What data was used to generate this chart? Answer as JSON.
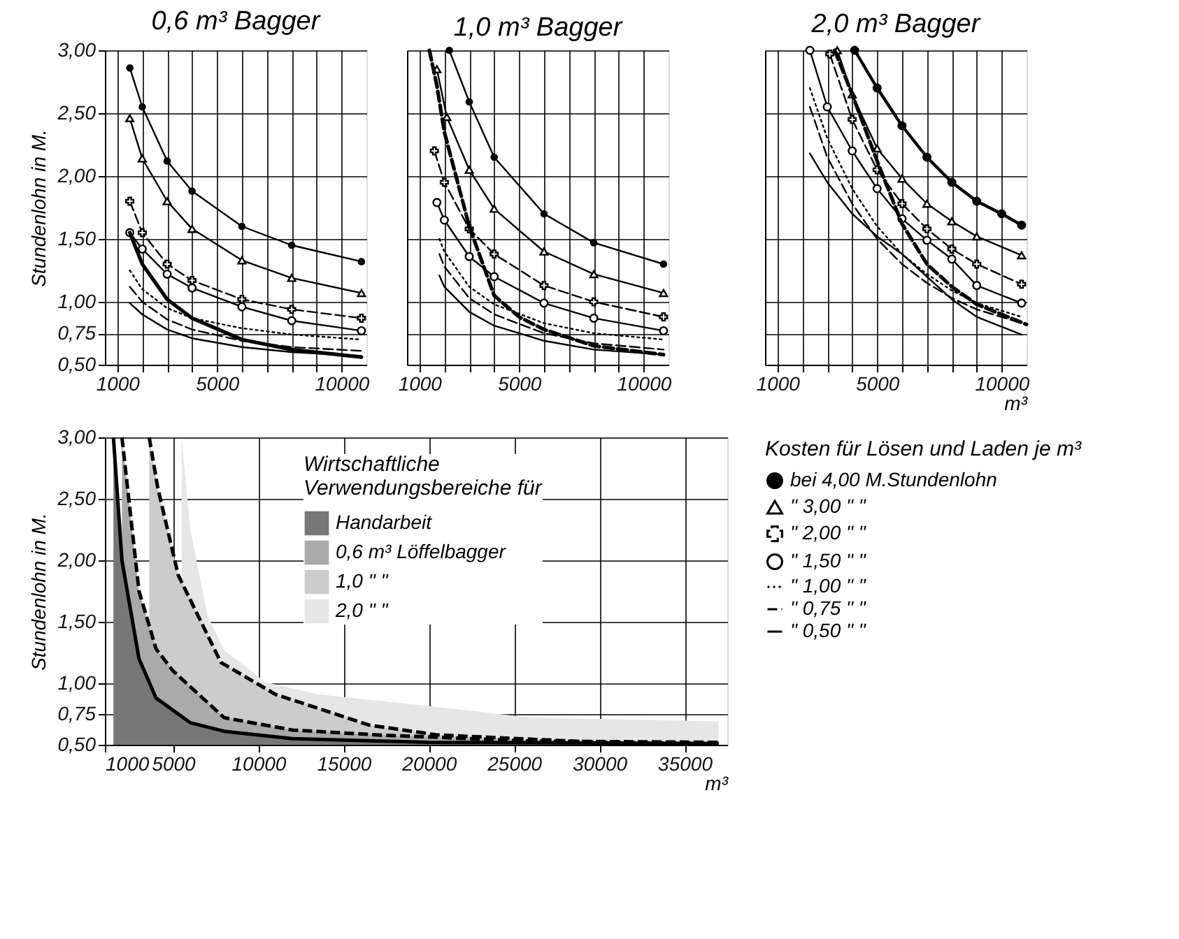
{
  "chart_data": [
    {
      "type": "line",
      "title": "0,6 m³ Bagger",
      "ylabel": "Stundenlohn in M.",
      "xlim": [
        500,
        11000
      ],
      "ylim": [
        0.5,
        3.0
      ],
      "xticks": [
        1000,
        {
          "value": 2000,
          "label": null
        },
        {
          "value": 3000,
          "label": null
        },
        {
          "value": 4000,
          "label": null
        },
        5000,
        {
          "value": 6000,
          "label": null
        },
        {
          "value": 7000,
          "label": null
        },
        {
          "value": 8000,
          "label": null
        },
        {
          "value": 9000,
          "label": null
        },
        10000
      ],
      "yticks": [
        {
          "value": 0.5,
          "label": "0,50"
        },
        {
          "value": 0.75,
          "label": "0,75"
        },
        {
          "value": 1.0,
          "label": "1,00"
        },
        {
          "value": 1.5,
          "label": "1,50"
        },
        {
          "value": 2.0,
          "label": "2,00"
        },
        {
          "value": 2.5,
          "label": "2,50"
        },
        {
          "value": 3.0,
          "label": "3,00"
        }
      ],
      "grid": true,
      "legend": false,
      "series": [
        {
          "color": "#000000",
          "marker": "circle",
          "line_style": "solid",
          "x": [
            1500,
            2000,
            3000,
            4000,
            6000,
            8000,
            10800
          ],
          "values": [
            2.86,
            2.55,
            2.12,
            1.88,
            1.6,
            1.45,
            1.32
          ]
        },
        {
          "color": "#000000",
          "marker": "triangle",
          "line_style": "solid",
          "x": [
            1500,
            2000,
            3000,
            4000,
            6000,
            8000,
            10800
          ],
          "values": [
            2.46,
            2.14,
            1.8,
            1.58,
            1.33,
            1.19,
            1.07
          ]
        },
        {
          "color": "#000000",
          "marker": "cross",
          "line_style": "dashed",
          "x": [
            1500,
            2000,
            3000,
            4000,
            6000,
            8000,
            10800
          ],
          "values": [
            1.8,
            1.55,
            1.3,
            1.17,
            1.02,
            0.94,
            0.87
          ]
        },
        {
          "color": "#000000",
          "marker": "circle",
          "line_style": "solid",
          "x": [
            1500,
            2000,
            3000,
            4000,
            6000,
            8000,
            10800
          ],
          "values": [
            1.55,
            1.42,
            1.22,
            1.11,
            0.96,
            0.85,
            0.77
          ]
        },
        {
          "color": "#000000",
          "line_style": "dotted",
          "x": [
            1500,
            2000,
            3000,
            4000,
            6000,
            8000,
            10800
          ],
          "values": [
            1.25,
            1.1,
            0.95,
            0.87,
            0.79,
            0.74,
            0.7
          ]
        },
        {
          "color": "#000000",
          "line_style": "dashed",
          "x": [
            1500,
            2000,
            3000,
            4000,
            6000,
            8000,
            10800
          ],
          "values": [
            1.12,
            1.0,
            0.86,
            0.78,
            0.69,
            0.64,
            0.61
          ]
        },
        {
          "color": "#000000",
          "line_style": "solid",
          "x": [
            1500,
            2000,
            3000,
            4000,
            6000,
            8000,
            10800
          ],
          "values": [
            0.99,
            0.9,
            0.78,
            0.71,
            0.64,
            0.6,
            0.57
          ]
        },
        {
          "color": "#000000",
          "line_style": "solid",
          "x": [
            1500,
            2000,
            3000,
            4000,
            6000,
            8000,
            10800
          ],
          "values": [
            1.55,
            1.3,
            1.02,
            0.87,
            0.7,
            0.62,
            0.56
          ]
        }
      ]
    },
    {
      "type": "line",
      "title": "1,0 m³ Bagger",
      "xlim": [
        500,
        11000
      ],
      "ylim": [
        0.5,
        3.0
      ],
      "tick_labels": "x",
      "xticks": [
        1000,
        {
          "value": 2000,
          "label": null
        },
        {
          "value": 3000,
          "label": null
        },
        {
          "value": 4000,
          "label": null
        },
        5000,
        {
          "value": 6000,
          "label": null
        },
        {
          "value": 7000,
          "label": null
        },
        {
          "value": 8000,
          "label": null
        },
        {
          "value": 9000,
          "label": null
        },
        10000
      ],
      "yticks": [
        {
          "value": 0.5,
          "label": null
        },
        {
          "value": 0.75,
          "label": null
        },
        {
          "value": 1.0,
          "label": null
        },
        {
          "value": 1.5,
          "label": null
        },
        {
          "value": 2.0,
          "label": null
        },
        {
          "value": 2.5,
          "label": null
        },
        {
          "value": 3.0,
          "label": null
        }
      ],
      "grid": true,
      "legend": false,
      "series": [
        {
          "color": "#000000",
          "marker": "circle",
          "line_style": "solid",
          "x": [
            2200,
            3000,
            4000,
            6000,
            8000,
            10800
          ],
          "values": [
            3.0,
            2.59,
            2.15,
            1.7,
            1.47,
            1.3
          ]
        },
        {
          "color": "#000000",
          "marker": "triangle",
          "line_style": "solid",
          "x": [
            1700,
            2100,
            3000,
            4000,
            6000,
            8000,
            10800
          ],
          "values": [
            2.85,
            2.47,
            2.05,
            1.74,
            1.4,
            1.22,
            1.07
          ]
        },
        {
          "color": "#000000",
          "marker": "cross",
          "line_style": "dashed",
          "x": [
            1600,
            2000,
            3000,
            4000,
            6000,
            8000,
            10800
          ],
          "values": [
            2.2,
            1.95,
            1.58,
            1.38,
            1.13,
            1.0,
            0.88
          ]
        },
        {
          "color": "#000000",
          "marker": "circle",
          "line_style": "solid",
          "x": [
            1700,
            2000,
            3000,
            4000,
            6000,
            8000,
            10800
          ],
          "values": [
            1.79,
            1.65,
            1.36,
            1.2,
            0.99,
            0.87,
            0.77
          ]
        },
        {
          "color": "#000000",
          "line_style": "dotted",
          "x": [
            1800,
            2000,
            3000,
            4000,
            6000,
            8000,
            10800
          ],
          "values": [
            1.5,
            1.4,
            1.12,
            0.98,
            0.83,
            0.75,
            0.7
          ]
        },
        {
          "color": "#000000",
          "line_style": "dashed",
          "x": [
            1800,
            2000,
            3000,
            4000,
            6000,
            8000,
            10800
          ],
          "values": [
            1.38,
            1.28,
            1.03,
            0.9,
            0.75,
            0.67,
            0.62
          ]
        },
        {
          "color": "#000000",
          "line_style": "solid",
          "x": [
            1800,
            2000,
            3000,
            4000,
            6000,
            8000,
            10800
          ],
          "values": [
            1.21,
            1.12,
            0.92,
            0.81,
            0.69,
            0.62,
            0.58
          ]
        },
        {
          "color": "#000000",
          "line_style": "dashed",
          "x": [
            1400,
            1700,
            2000,
            3000,
            4000,
            5000,
            6000,
            8000,
            10800
          ],
          "values": [
            3.0,
            2.72,
            2.35,
            1.6,
            1.05,
            0.88,
            0.78,
            0.65,
            0.58
          ]
        }
      ]
    },
    {
      "type": "line",
      "title": "2,0 m³ Bagger",
      "xlabel": "m³",
      "xlim": [
        500,
        11000
      ],
      "ylim": [
        0.5,
        3.0
      ],
      "tick_labels": "x",
      "xticks": [
        1000,
        {
          "value": 2000,
          "label": null
        },
        {
          "value": 3000,
          "label": null
        },
        {
          "value": 4000,
          "label": null
        },
        5000,
        {
          "value": 6000,
          "label": null
        },
        {
          "value": 7000,
          "label": null
        },
        {
          "value": 8000,
          "label": null
        },
        {
          "value": 9000,
          "label": null
        },
        10000
      ],
      "yticks": [
        {
          "value": 0.5,
          "label": null
        },
        {
          "value": 0.75,
          "label": null
        },
        {
          "value": 1.0,
          "label": null
        },
        {
          "value": 1.5,
          "label": null
        },
        {
          "value": 2.0,
          "label": null
        },
        {
          "value": 2.5,
          "label": null
        },
        {
          "value": 3.0,
          "label": null
        }
      ],
      "grid": true,
      "legend": "bottom",
      "legend_title": "Kosten für Lösen und Laden je m³",
      "series": [
        {
          "name": "bei 4,00 M.Stundenlohn",
          "color": "#000000",
          "marker": "circle",
          "line_style": "solid",
          "x": [
            4100,
            5000,
            6000,
            7000,
            8000,
            9000,
            10000,
            10800
          ],
          "values": [
            3.0,
            2.7,
            2.4,
            2.15,
            1.95,
            1.8,
            1.7,
            1.61
          ]
        },
        {
          "name": "\" 3,00 \"   \"",
          "color": "#000000",
          "marker": "triangle",
          "line_style": "solid",
          "x": [
            3400,
            4000,
            5000,
            6000,
            7000,
            8000,
            9000,
            10800
          ],
          "values": [
            3.0,
            2.65,
            2.22,
            1.98,
            1.78,
            1.64,
            1.52,
            1.37
          ]
        },
        {
          "name": "\" 2,00 \"   \"",
          "color": "#000000",
          "marker": "cross",
          "line_style": "dashed",
          "x": [
            3100,
            4000,
            5000,
            6000,
            7000,
            8000,
            9000,
            10800
          ],
          "values": [
            2.97,
            2.45,
            2.05,
            1.78,
            1.58,
            1.42,
            1.3,
            1.14
          ]
        },
        {
          "name": "\" 1,50 \"   \"",
          "color": "#000000",
          "marker": "circle",
          "line_style": "solid",
          "x": [
            2300,
            3000,
            4000,
            5000,
            6000,
            7000,
            8000,
            9000,
            10800
          ],
          "values": [
            3.0,
            2.55,
            2.2,
            1.9,
            1.66,
            1.49,
            1.34,
            1.13,
            0.99
          ]
        },
        {
          "name": "\" 1,00 \"   \"",
          "color": "#000000",
          "line_style": "dotted",
          "x": [
            2300,
            3000,
            4000,
            5000,
            6000,
            7000,
            8000,
            9000,
            10800
          ],
          "values": [
            2.7,
            2.3,
            1.9,
            1.6,
            1.38,
            1.22,
            1.09,
            0.99,
            0.88
          ]
        },
        {
          "name": "\" 0,75 \"   \"",
          "color": "#000000",
          "line_style": "dashed",
          "x": [
            2300,
            3000,
            4000,
            5000,
            6000,
            7000,
            8000,
            9000,
            10800
          ],
          "values": [
            2.55,
            2.15,
            1.78,
            1.5,
            1.3,
            1.15,
            1.03,
            0.94,
            0.83
          ]
        },
        {
          "name": "\" 0,50 \"   \"",
          "color": "#000000",
          "line_style": "solid",
          "x": [
            2300,
            3000,
            4000,
            5000,
            6000,
            7000,
            8000,
            9000,
            10800
          ],
          "values": [
            2.18,
            1.95,
            1.7,
            1.52,
            1.38,
            1.2,
            1.02,
            0.88,
            0.74
          ]
        },
        {
          "color": "#000000",
          "line_style": "dashed",
          "x": [
            3300,
            4000,
            5000,
            6000,
            7000,
            8000,
            9000,
            10000,
            11000
          ],
          "values": [
            3.0,
            2.65,
            2.12,
            1.62,
            1.3,
            1.12,
            0.98,
            0.9,
            0.82
          ]
        }
      ]
    },
    {
      "type": "area",
      "ylabel": "Stundenlohn in M.",
      "xlabel": "m³",
      "xlim": [
        1000,
        37500
      ],
      "ylim": [
        0.5,
        3.0
      ],
      "xticks": [
        1000,
        5000,
        10000,
        15000,
        20000,
        25000,
        30000,
        35000
      ],
      "yticks": [
        {
          "value": 0.5,
          "label": "0,50"
        },
        {
          "value": 0.75,
          "label": "0,75"
        },
        {
          "value": 1.0,
          "label": "1,00"
        },
        {
          "value": 1.5,
          "label": "1,50"
        },
        {
          "value": 2.0,
          "label": "2,00"
        },
        {
          "value": 2.5,
          "label": "2,50"
        },
        {
          "value": 3.0,
          "label": "3,00"
        }
      ],
      "grid": true,
      "legend": "top right",
      "legend_title": "Wirtschaftliche\nVerwendungsbereiche für",
      "series": [
        {
          "name": "Handarbeit",
          "color": "#777777",
          "line_style": "solid",
          "x": [
            1500,
            2000,
            3000,
            4000,
            6000,
            8000,
            12000,
            20000,
            37000
          ],
          "values": [
            3.0,
            2.0,
            1.2,
            0.88,
            0.68,
            0.61,
            0.55,
            0.52,
            0.51
          ]
        },
        {
          "name": "0,6 m³ Löffelbagger",
          "color": "#aaaaaa",
          "line_style": "dashed",
          "x": [
            2000,
            3000,
            4000,
            5000,
            8000,
            12000,
            17000,
            26000,
            37000
          ],
          "values": [
            3.0,
            1.75,
            1.28,
            1.1,
            0.72,
            0.62,
            0.58,
            0.53,
            0.52
          ]
        },
        {
          "name": "1,0 \"   \"",
          "color": "#cccccc",
          "line_style": "dashed",
          "x": [
            3600,
            4100,
            5300,
            7800,
            11000,
            16500,
            20500,
            30000,
            37000
          ],
          "values": [
            3.0,
            2.59,
            1.88,
            1.17,
            0.91,
            0.66,
            0.58,
            0.52,
            0.51
          ]
        },
        {
          "name": "2,0 \"   \"",
          "color": "#e6e6e6",
          "x": [
            5500,
            6000,
            7000,
            8000,
            10400,
            13500,
            19700,
            26000,
            37000
          ],
          "values": [
            3.0,
            2.26,
            1.56,
            1.27,
            1.01,
            0.91,
            0.82,
            0.72,
            0.69
          ]
        }
      ]
    }
  ]
}
